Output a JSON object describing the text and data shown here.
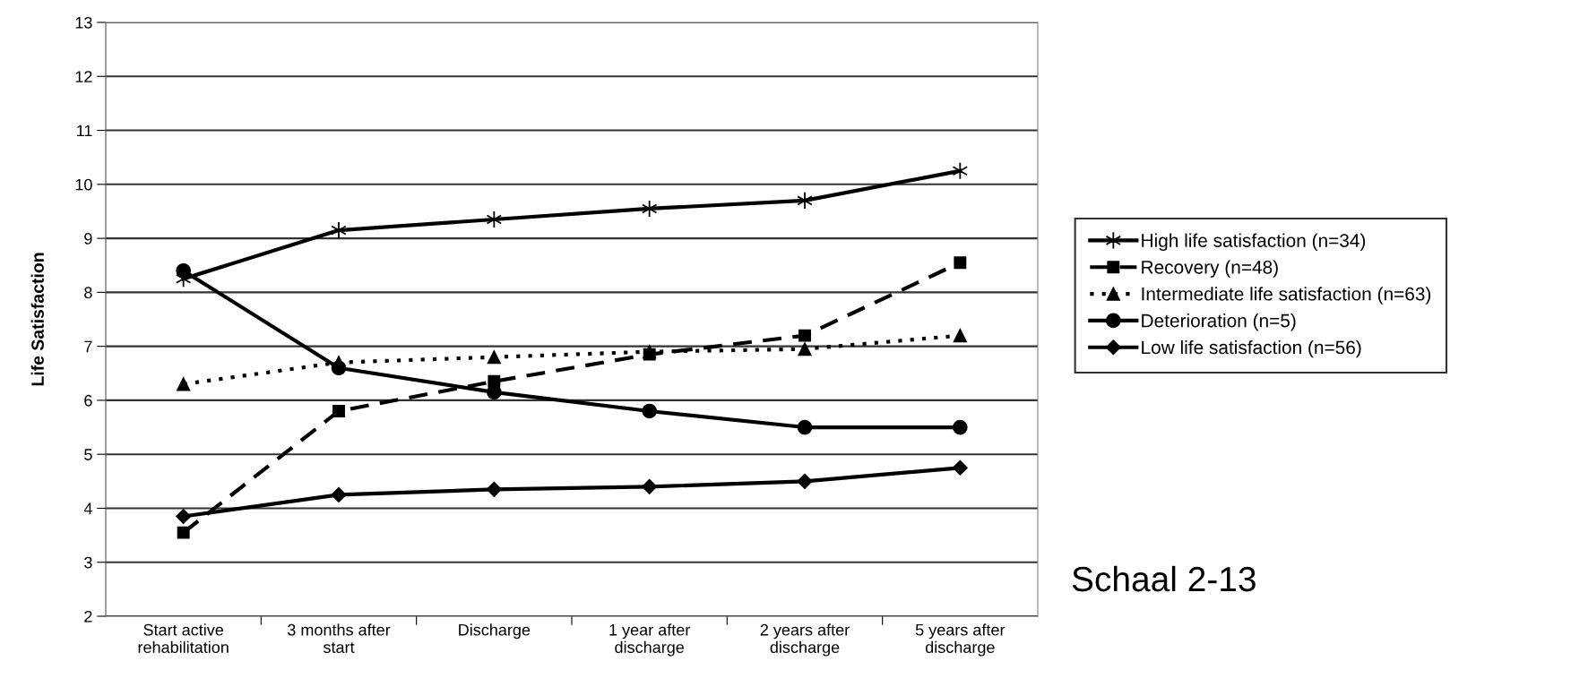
{
  "chart_data": {
    "type": "line",
    "ylabel": "Life Satisfaction",
    "categories": [
      "Start active\nrehabilitation",
      "3 months after\nstart",
      "Discharge",
      "1 year after\ndischarge",
      "2 years after\ndischarge",
      "5 years after\ndischarge"
    ],
    "series": [
      {
        "name": "High life satisfaction (n=34)",
        "color": "#000000",
        "marker": "cross",
        "line_style": "solid",
        "values": [
          8.25,
          9.15,
          9.35,
          9.55,
          9.7,
          10.25
        ]
      },
      {
        "name": "Recovery (n=48)",
        "color": "#000000",
        "marker": "square",
        "line_style": "dashed",
        "values": [
          3.55,
          5.8,
          6.35,
          6.85,
          7.2,
          8.55
        ]
      },
      {
        "name": "Intermediate life satisfaction (n=63)",
        "color": "#000000",
        "marker": "triangle",
        "line_style": "dotted",
        "values": [
          6.3,
          6.7,
          6.8,
          6.9,
          6.95,
          7.2
        ]
      },
      {
        "name": "Deterioration (n=5)",
        "color": "#000000",
        "marker": "circle",
        "line_style": "solid",
        "values": [
          8.4,
          6.6,
          6.15,
          5.8,
          5.5,
          5.5
        ]
      },
      {
        "name": "Low life satisfaction (n=56)",
        "color": "#000000",
        "marker": "diamond",
        "line_style": "solid",
        "values": [
          3.85,
          4.25,
          4.35,
          4.4,
          4.5,
          4.75
        ]
      }
    ],
    "ylim": [
      2,
      13
    ],
    "yticks": [
      2,
      3,
      4,
      5,
      6,
      7,
      8,
      9,
      10,
      11,
      12,
      13
    ],
    "grid": "y",
    "legend": "right",
    "annotations": [
      "Schaal 2-13"
    ]
  }
}
